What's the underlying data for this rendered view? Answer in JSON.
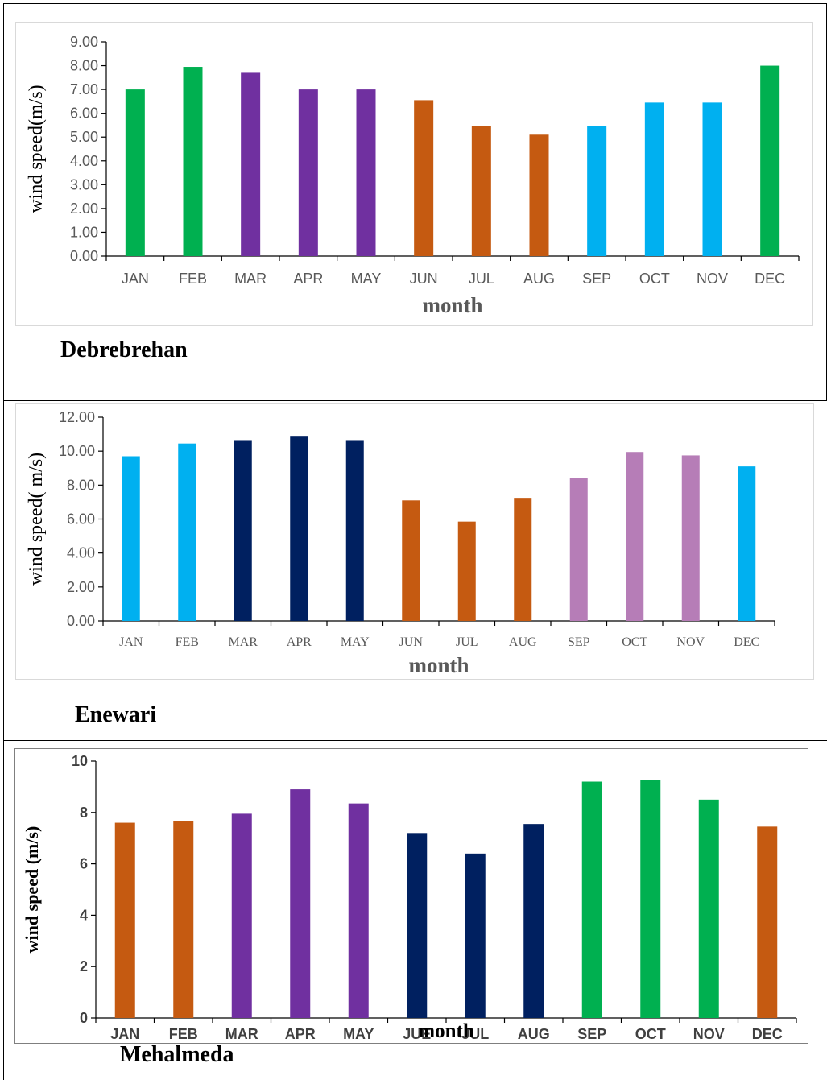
{
  "chart_data": [
    {
      "type": "bar",
      "caption": "Debrebrehan",
      "xlabel": "month",
      "ylabel": "wind speed(m/s)",
      "ylim": [
        0,
        9
      ],
      "yticks": [
        "0.00",
        "1.00",
        "2.00",
        "3.00",
        "4.00",
        "5.00",
        "6.00",
        "7.00",
        "8.00",
        "9.00"
      ],
      "grid": false,
      "categories": [
        "JAN",
        "FEB",
        "MAR",
        "APR",
        "MAY",
        "JUN",
        "JUL",
        "AUG",
        "SEP",
        "OCT",
        "NOV",
        "DEC"
      ],
      "values": [
        7.0,
        7.95,
        7.7,
        7.0,
        7.0,
        6.55,
        5.45,
        5.1,
        5.45,
        6.45,
        6.45,
        8.0
      ],
      "colors": [
        "#00b050",
        "#00b050",
        "#7030a0",
        "#7030a0",
        "#7030a0",
        "#c55a11",
        "#c55a11",
        "#c55a11",
        "#00b0f0",
        "#00b0f0",
        "#00b0f0",
        "#00b050"
      ]
    },
    {
      "type": "bar",
      "caption": "Enewari",
      "xlabel": "month",
      "ylabel": "wind speed( m/s)",
      "ylim": [
        0,
        12
      ],
      "yticks": [
        "0.00",
        "2.00",
        "4.00",
        "6.00",
        "8.00",
        "10.00",
        "12.00"
      ],
      "grid": false,
      "categories": [
        "JAN",
        "FEB",
        "MAR",
        "APR",
        "MAY",
        "JUN",
        "JUL",
        "AUG",
        "SEP",
        "OCT",
        "NOV",
        "DEC"
      ],
      "values": [
        9.7,
        10.45,
        10.65,
        10.9,
        10.65,
        7.1,
        5.85,
        7.25,
        8.4,
        9.95,
        9.75,
        9.1
      ],
      "colors": [
        "#00b0f0",
        "#00b0f0",
        "#002060",
        "#002060",
        "#002060",
        "#c55a11",
        "#c55a11",
        "#c55a11",
        "#b67db7",
        "#b67db7",
        "#b67db7",
        "#00b0f0"
      ]
    },
    {
      "type": "bar",
      "caption": "Mehalmeda",
      "xlabel": "month",
      "ylabel": "wind speed (m/s)",
      "ylim": [
        0,
        10
      ],
      "yticks": [
        "0",
        "2",
        "4",
        "6",
        "8",
        "10"
      ],
      "grid": false,
      "categories": [
        "JAN",
        "FEB",
        "MAR",
        "APR",
        "MAY",
        "JUE",
        "JUL",
        "AUG",
        "SEP",
        "OCT",
        "NOV",
        "DEC"
      ],
      "values": [
        7.6,
        7.65,
        7.95,
        8.9,
        8.35,
        7.2,
        6.4,
        7.55,
        9.2,
        9.25,
        8.5,
        7.45
      ],
      "colors": [
        "#c55a11",
        "#c55a11",
        "#7030a0",
        "#7030a0",
        "#7030a0",
        "#002060",
        "#002060",
        "#002060",
        "#00b050",
        "#00b050",
        "#00b050",
        "#c55a11"
      ]
    }
  ]
}
